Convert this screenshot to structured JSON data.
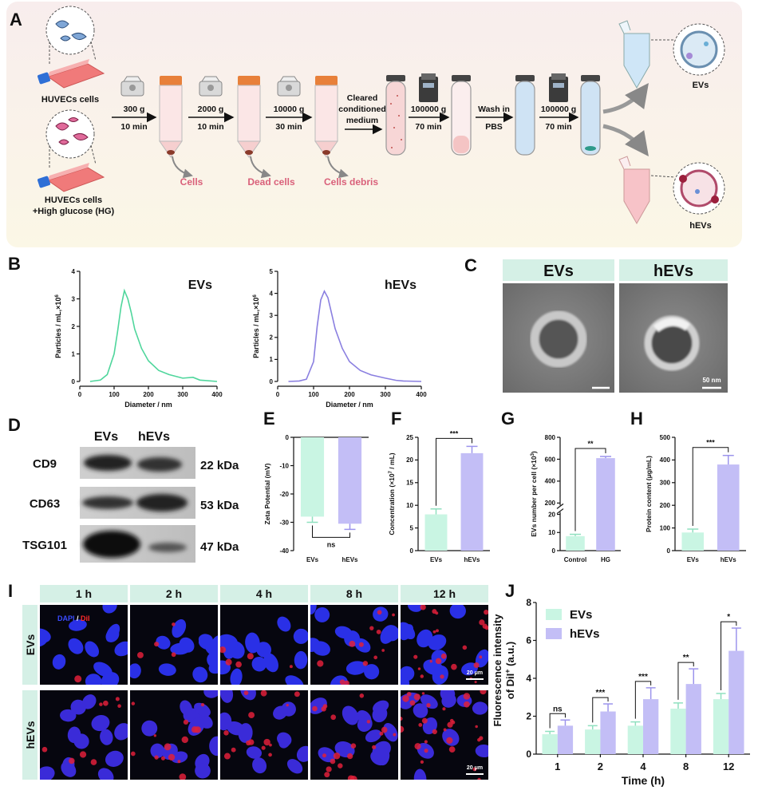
{
  "diagram": {
    "label": "A",
    "sources": [
      {
        "label": "HUVECs cells"
      },
      {
        "label": "HUVECs cells",
        "sublabel": "+High glucose (HG)"
      }
    ],
    "steps": [
      {
        "speed": "300 g",
        "time": "10 min"
      },
      {
        "speed": "2000 g",
        "time": "10 min"
      },
      {
        "speed": "10000 g",
        "time": "30 min"
      },
      {
        "speed": "100000 g",
        "time": "70 min"
      },
      {
        "speed": "100000 g",
        "time": "70 min"
      }
    ],
    "medium": [
      "Cleared",
      "conditioned",
      "medium"
    ],
    "wash": [
      "Wash in",
      "PBS"
    ],
    "removed": [
      "Cells",
      "Dead cells",
      "Cells debris"
    ],
    "products": [
      "EVs",
      "hEVs"
    ]
  },
  "tem": {
    "label": "C",
    "columns": [
      "EVs",
      "hEVs"
    ],
    "scale_bar": "50 nm"
  },
  "western_blot": {
    "label": "D",
    "columns": [
      "EVs",
      "hEVs"
    ],
    "rows": [
      {
        "protein": "CD9",
        "size": "22 kDa"
      },
      {
        "protein": "CD63",
        "size": "53 kDa"
      },
      {
        "protein": "TSG101",
        "size": "47 kDa"
      }
    ]
  },
  "microscopy": {
    "label": "I",
    "columns": [
      "1 h",
      "2 h",
      "4 h",
      "8 h",
      "12 h"
    ],
    "rows": [
      "EVs",
      "hEVs"
    ],
    "stain": [
      "DAPI",
      " / ",
      "DiI"
    ],
    "scale_bar": "20 μm"
  },
  "chart_data": [
    {
      "type": "line",
      "panel": "B",
      "x_label": "Diameter / nm",
      "y_label": [
        [
          "Particles / mL,×10",
          "6"
        ]
      ],
      "x": [
        30,
        60,
        80,
        100,
        110,
        120,
        130,
        140,
        150,
        160,
        180,
        200,
        230,
        260,
        300,
        330,
        350,
        400
      ],
      "series": [
        {
          "name": "EVs",
          "color": "#4fd69c",
          "values": [
            0,
            0.05,
            0.25,
            1.0,
            1.8,
            2.7,
            3.3,
            3.0,
            2.5,
            1.9,
            1.2,
            0.75,
            0.4,
            0.25,
            0.12,
            0.15,
            0.05,
            0
          ]
        }
      ],
      "xlim": [
        0,
        400
      ],
      "xticks": [
        0,
        100,
        200,
        300,
        400
      ],
      "ylim": [
        0,
        4
      ],
      "yticks": [
        0,
        1,
        2,
        3,
        4
      ]
    },
    {
      "type": "line",
      "x_label": "Diameter / nm",
      "y_label": [
        [
          "Particles / mL,×10",
          "6"
        ]
      ],
      "x": [
        30,
        60,
        80,
        100,
        110,
        120,
        130,
        140,
        150,
        160,
        180,
        200,
        230,
        260,
        300,
        330,
        350,
        400
      ],
      "series": [
        {
          "name": "hEVs",
          "color": "#8a7fe0",
          "values": [
            0,
            0.02,
            0.1,
            0.9,
            2.5,
            3.7,
            4.1,
            3.8,
            3.1,
            2.4,
            1.5,
            0.9,
            0.5,
            0.3,
            0.15,
            0.05,
            0.02,
            0
          ]
        }
      ],
      "xlim": [
        0,
        400
      ],
      "xticks": [
        0,
        100,
        200,
        300,
        400
      ],
      "ylim": [
        0,
        5
      ],
      "yticks": [
        0,
        1,
        2,
        3,
        4,
        5
      ]
    },
    {
      "type": "bar",
      "panel": "E",
      "y_label": [
        [
          "Zeta Potential (mV)"
        ]
      ],
      "categories": [
        "EVs",
        "hEVs"
      ],
      "values": [
        -28,
        -30.5
      ],
      "errors": [
        2,
        2
      ],
      "colors": [
        "#c9f5e3",
        "#c3bef6"
      ],
      "error_colors": [
        "#8fe0bf",
        "#9c94ec"
      ],
      "ylim": [
        -40,
        0
      ],
      "yticks": [
        -40,
        -30,
        -20,
        -10,
        0
      ],
      "significance": "ns"
    },
    {
      "type": "bar",
      "panel": "F",
      "y_label": [
        [
          "Concentration (×10",
          "7",
          " / mL)"
        ]
      ],
      "categories": [
        "EVs",
        "hEVs"
      ],
      "values": [
        8,
        21.5
      ],
      "errors": [
        1.2,
        1.5
      ],
      "colors": [
        "#c9f5e3",
        "#c3bef6"
      ],
      "error_colors": [
        "#8fe0bf",
        "#9c94ec"
      ],
      "ylim": [
        0,
        25
      ],
      "yticks": [
        0,
        5,
        10,
        15,
        20,
        25
      ],
      "significance": "***"
    },
    {
      "type": "bar",
      "panel": "G",
      "y_label": [
        [
          "EVs number per cell (×10",
          "3",
          ")"
        ]
      ],
      "categories": [
        "Control",
        "HG"
      ],
      "values": [
        8,
        610
      ],
      "errors": [
        1,
        15
      ],
      "colors": [
        "#c9f5e3",
        "#c3bef6"
      ],
      "error_colors": [
        "#8fe0bf",
        "#9c94ec"
      ],
      "ylim": [
        0,
        800
      ],
      "yticks": [
        0,
        10,
        20,
        200,
        400,
        600,
        800
      ],
      "axis_break": [
        20,
        200
      ],
      "significance": "**"
    },
    {
      "type": "bar",
      "panel": "H",
      "y_label": [
        [
          "Protein content (μg/mL)"
        ]
      ],
      "categories": [
        "EVs",
        "hEVs"
      ],
      "values": [
        80,
        380
      ],
      "errors": [
        15,
        40
      ],
      "colors": [
        "#c9f5e3",
        "#c3bef6"
      ],
      "error_colors": [
        "#8fe0bf",
        "#9c94ec"
      ],
      "ylim": [
        0,
        500
      ],
      "yticks": [
        0,
        100,
        200,
        300,
        400,
        500
      ],
      "significance": "***"
    },
    {
      "type": "grouped_bar",
      "panel": "J",
      "x_label": "Time (h)",
      "y_label": [
        [
          "Fluorescence intensity"
        ],
        [
          "of DiI",
          "+",
          " (a.u.)"
        ]
      ],
      "categories": [
        "1",
        "2",
        "4",
        "8",
        "12"
      ],
      "series": [
        {
          "name": "EVs",
          "color": "#c9f5e3",
          "error_color": "#8fe0bf",
          "values": [
            1.05,
            1.3,
            1.5,
            2.4,
            2.9
          ],
          "errors": [
            0.15,
            0.2,
            0.2,
            0.3,
            0.3
          ]
        },
        {
          "name": "hEVs",
          "color": "#c3bef6",
          "error_color": "#9c94ec",
          "values": [
            1.5,
            2.25,
            2.9,
            3.7,
            5.45
          ],
          "errors": [
            0.3,
            0.4,
            0.6,
            0.8,
            1.2
          ]
        }
      ],
      "ylim": [
        0,
        8
      ],
      "yticks": [
        0,
        2,
        4,
        6,
        8
      ],
      "significance": [
        "ns",
        "***",
        "***",
        "**",
        "*"
      ],
      "legend": "upper left"
    }
  ]
}
